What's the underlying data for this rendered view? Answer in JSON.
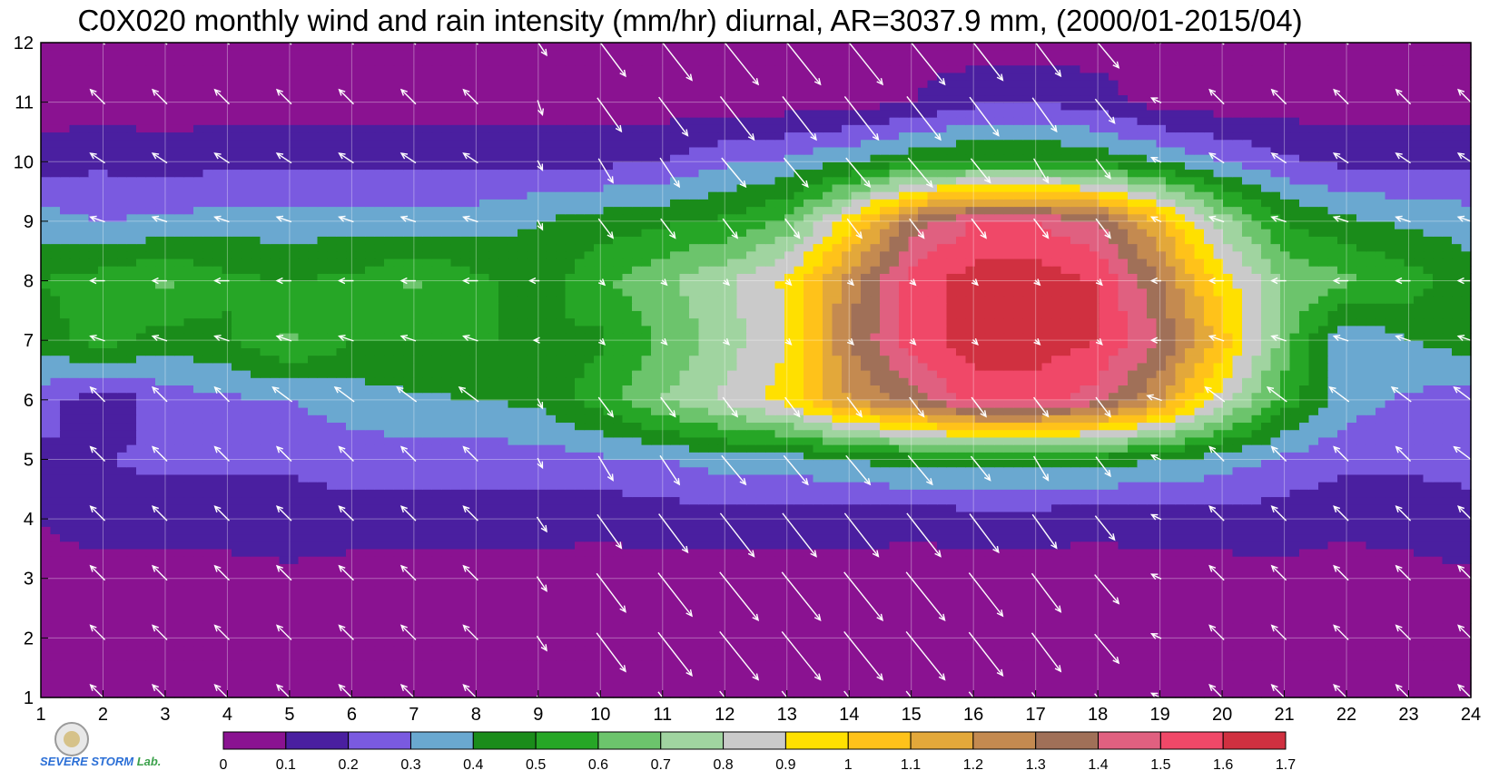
{
  "title": "C0X020 monthly wind and rain intensity (mm/hr) diurnal, AR=3037.9 mm, (2000/01-2015/04)",
  "logo": {
    "name": "Severe Storm Lab.",
    "text_main": "SEVERE STORM",
    "text_lab": "Lab."
  },
  "chart_data": {
    "type": "heatmap",
    "title": "C0X020 monthly wind and rain intensity (mm/hr) diurnal, AR=3037.9 mm, (2000/01-2015/04)",
    "xlabel": "",
    "ylabel": "",
    "x_ticks": [
      "1",
      "2",
      "3",
      "4",
      "5",
      "6",
      "7",
      "8",
      "9",
      "10",
      "11",
      "12",
      "13",
      "14",
      "15",
      "16",
      "17",
      "18",
      "19",
      "20",
      "21",
      "22",
      "23",
      "24"
    ],
    "y_ticks": [
      "1",
      "2",
      "3",
      "4",
      "5",
      "6",
      "7",
      "8",
      "9",
      "10",
      "11",
      "12"
    ],
    "xlim": [
      1,
      24
    ],
    "ylim": [
      1,
      12
    ],
    "grid": true,
    "colorbar": {
      "orientation": "horizontal",
      "ticks": [
        "0",
        "0.1",
        "0.2",
        "0.3",
        "0.4",
        "0.5",
        "0.6",
        "0.7",
        "0.8",
        "0.9",
        "1",
        "1.1",
        "1.2",
        "1.3",
        "1.4",
        "1.5",
        "1.6",
        "1.7"
      ],
      "colors": [
        "#8a1291",
        "#4a1fa0",
        "#7a5ae0",
        "#6aa8d0",
        "#1a8c1a",
        "#26a626",
        "#6cc46c",
        "#a0d4a0",
        "#cacaca",
        "#ffe000",
        "#ffc21a",
        "#e3a83a",
        "#c48a50",
        "#a07058",
        "#e06080",
        "#f04868",
        "#d03040"
      ]
    },
    "intensity_grid": {
      "rows_y": [
        1,
        2,
        3,
        4,
        5,
        6,
        7,
        8,
        9,
        10,
        11,
        12
      ],
      "cols_x": [
        1,
        2,
        3,
        4,
        5,
        6,
        7,
        8,
        9,
        10,
        11,
        12,
        13,
        14,
        15,
        16,
        17,
        18,
        19,
        20,
        21,
        22,
        23,
        24
      ],
      "values": [
        [
          0.05,
          0.05,
          0.05,
          0.05,
          0.05,
          0.05,
          0.05,
          0.05,
          0.05,
          0.05,
          0.05,
          0.05,
          0.05,
          0.05,
          0.05,
          0.05,
          0.05,
          0.05,
          0.05,
          0.05,
          0.05,
          0.05,
          0.05,
          0.05
        ],
        [
          0.05,
          0.1,
          0.05,
          0.05,
          0.05,
          0.05,
          0.05,
          0.05,
          0.05,
          0.1,
          0.05,
          0.05,
          0.05,
          0.05,
          0.05,
          0.05,
          0.05,
          0.05,
          0.05,
          0.05,
          0.05,
          0.05,
          0.05,
          0.05
        ],
        [
          0.06,
          0.06,
          0.06,
          0.06,
          0.08,
          0.06,
          0.06,
          0.06,
          0.06,
          0.06,
          0.06,
          0.06,
          0.06,
          0.06,
          0.06,
          0.06,
          0.06,
          0.06,
          0.06,
          0.06,
          0.07,
          0.06,
          0.06,
          0.08
        ],
        [
          0.1,
          0.15,
          0.15,
          0.15,
          0.15,
          0.15,
          0.15,
          0.15,
          0.15,
          0.12,
          0.15,
          0.15,
          0.15,
          0.15,
          0.12,
          0.15,
          0.15,
          0.12,
          0.15,
          0.15,
          0.15,
          0.12,
          0.15,
          0.18
        ],
        [
          0.18,
          0.2,
          0.22,
          0.22,
          0.22,
          0.25,
          0.25,
          0.25,
          0.25,
          0.28,
          0.3,
          0.35,
          0.35,
          0.4,
          0.45,
          0.45,
          0.45,
          0.45,
          0.4,
          0.35,
          0.28,
          0.22,
          0.22,
          0.22
        ],
        [
          0.25,
          0.12,
          0.25,
          0.28,
          0.3,
          0.35,
          0.38,
          0.4,
          0.42,
          0.55,
          0.7,
          0.82,
          0.95,
          1.2,
          1.35,
          1.55,
          1.55,
          1.45,
          1.2,
          0.85,
          0.55,
          0.35,
          0.28,
          0.25
        ],
        [
          0.45,
          0.55,
          0.45,
          0.48,
          0.62,
          0.5,
          0.5,
          0.5,
          0.5,
          0.48,
          0.62,
          0.75,
          0.9,
          1.3,
          1.55,
          1.65,
          1.65,
          1.6,
          1.4,
          1.05,
          0.65,
          0.3,
          0.4,
          0.45
        ],
        [
          0.5,
          0.55,
          0.62,
          0.52,
          0.5,
          0.52,
          0.62,
          0.52,
          0.45,
          0.58,
          0.68,
          0.78,
          0.92,
          1.25,
          1.55,
          1.65,
          1.65,
          1.6,
          1.3,
          0.95,
          0.7,
          0.62,
          0.55,
          0.45
        ],
        [
          0.35,
          0.3,
          0.32,
          0.35,
          0.35,
          0.35,
          0.35,
          0.35,
          0.4,
          0.45,
          0.48,
          0.52,
          0.62,
          0.95,
          1.35,
          1.5,
          1.5,
          1.4,
          1.1,
          0.75,
          0.5,
          0.42,
          0.38,
          0.35
        ],
        [
          0.15,
          0.18,
          0.15,
          0.18,
          0.18,
          0.18,
          0.18,
          0.18,
          0.18,
          0.18,
          0.2,
          0.28,
          0.32,
          0.4,
          0.48,
          0.52,
          0.52,
          0.48,
          0.4,
          0.3,
          0.22,
          0.18,
          0.18,
          0.18
        ],
        [
          0.05,
          0.05,
          0.05,
          0.05,
          0.05,
          0.05,
          0.05,
          0.05,
          0.05,
          0.05,
          0.05,
          0.05,
          0.05,
          0.05,
          0.1,
          0.18,
          0.2,
          0.15,
          0.05,
          0.05,
          0.05,
          0.05,
          0.05,
          0.05
        ],
        [
          0.05,
          0.05,
          0.05,
          0.05,
          0.05,
          0.05,
          0.05,
          0.05,
          0.05,
          0.05,
          0.05,
          0.05,
          0.05,
          0.05,
          0.05,
          0.05,
          0.05,
          0.05,
          0.05,
          0.05,
          0.05,
          0.05,
          0.05,
          0.05
        ]
      ]
    },
    "wind_vectors": {
      "note_units": "relative",
      "rows_y": [
        1,
        2,
        3,
        4,
        5,
        6,
        7,
        8,
        9,
        10,
        11,
        12
      ],
      "cols_x": [
        2,
        3,
        4,
        5,
        6,
        7,
        8,
        9,
        10,
        11,
        12,
        13,
        14,
        15,
        16,
        17,
        18,
        19,
        20,
        21,
        22,
        23,
        24
      ],
      "u": [
        [
          -0.3,
          -0.3,
          -0.3,
          -0.3,
          -0.3,
          -0.3,
          -0.3,
          0.2,
          0.6,
          0.7,
          0.8,
          0.8,
          0.8,
          0.8,
          0.7,
          0.6,
          0.5,
          -0.2,
          -0.3,
          -0.3,
          -0.3,
          -0.3,
          -0.3
        ],
        [
          -0.3,
          -0.3,
          -0.3,
          -0.3,
          -0.3,
          -0.3,
          -0.3,
          0.2,
          0.6,
          0.7,
          0.8,
          0.8,
          0.8,
          0.8,
          0.7,
          0.6,
          0.5,
          -0.2,
          -0.3,
          -0.3,
          -0.3,
          -0.3,
          -0.3
        ],
        [
          -0.3,
          -0.3,
          -0.3,
          -0.3,
          -0.3,
          -0.3,
          -0.3,
          0.2,
          0.6,
          0.7,
          0.8,
          0.8,
          0.8,
          0.8,
          0.7,
          0.6,
          0.5,
          -0.2,
          -0.3,
          -0.3,
          -0.3,
          -0.3,
          -0.3
        ],
        [
          -0.3,
          -0.3,
          -0.3,
          -0.3,
          -0.3,
          -0.3,
          -0.3,
          0.2,
          0.5,
          0.6,
          0.7,
          0.7,
          0.7,
          0.7,
          0.6,
          0.5,
          0.4,
          -0.2,
          -0.3,
          -0.3,
          -0.3,
          -0.3,
          -0.3
        ],
        [
          -0.3,
          -0.3,
          -0.3,
          -0.3,
          -0.3,
          -0.3,
          -0.3,
          0.1,
          0.3,
          0.4,
          0.5,
          0.5,
          0.5,
          0.5,
          0.4,
          0.3,
          0.3,
          -0.2,
          -0.3,
          -0.3,
          -0.3,
          -0.3,
          -0.4
        ],
        [
          -0.3,
          -0.3,
          -0.3,
          -0.4,
          -0.4,
          -0.4,
          -0.4,
          0.1,
          0.3,
          0.3,
          0.3,
          0.3,
          0.3,
          0.3,
          0.3,
          0.3,
          0.3,
          -0.3,
          -0.4,
          -0.4,
          -0.4,
          -0.4,
          -0.4
        ],
        [
          -0.3,
          -0.3,
          -0.3,
          -0.3,
          -0.3,
          -0.3,
          -0.3,
          -0.1,
          0.1,
          0.1,
          0.1,
          0.1,
          0.1,
          0.1,
          0.1,
          0.1,
          0.1,
          -0.2,
          -0.3,
          -0.3,
          -0.3,
          -0.3,
          -0.3
        ],
        [
          -0.3,
          -0.3,
          -0.3,
          -0.3,
          -0.3,
          -0.3,
          -0.3,
          -0.2,
          0.1,
          0.1,
          0.1,
          0.1,
          0.1,
          0.1,
          0.1,
          0.1,
          0.1,
          -0.2,
          -0.3,
          -0.3,
          -0.3,
          -0.3,
          -0.3
        ],
        [
          -0.3,
          -0.3,
          -0.3,
          -0.3,
          -0.3,
          -0.3,
          -0.3,
          0.1,
          0.3,
          0.3,
          0.3,
          0.3,
          0.3,
          0.3,
          0.3,
          0.3,
          0.3,
          -0.2,
          -0.3,
          -0.3,
          -0.3,
          -0.3,
          -0.3
        ],
        [
          -0.3,
          -0.3,
          -0.3,
          -0.3,
          -0.3,
          -0.3,
          -0.3,
          0.1,
          0.3,
          0.4,
          0.5,
          0.5,
          0.5,
          0.5,
          0.4,
          0.3,
          0.3,
          -0.2,
          -0.3,
          -0.3,
          -0.3,
          -0.3,
          -0.3
        ],
        [
          -0.3,
          -0.3,
          -0.3,
          -0.3,
          -0.3,
          -0.3,
          -0.3,
          0.1,
          0.5,
          0.6,
          0.7,
          0.7,
          0.7,
          0.7,
          0.6,
          0.5,
          0.4,
          -0.2,
          -0.3,
          -0.3,
          -0.3,
          -0.3,
          -0.3
        ],
        [
          -0.3,
          -0.3,
          -0.3,
          -0.3,
          -0.3,
          -0.3,
          -0.3,
          0.2,
          0.6,
          0.7,
          0.8,
          0.8,
          0.8,
          0.8,
          0.7,
          0.6,
          0.5,
          -0.2,
          -0.3,
          -0.3,
          -0.3,
          -0.3,
          -0.3
        ]
      ],
      "v": [
        [
          0.3,
          0.3,
          0.3,
          0.3,
          0.3,
          0.3,
          0.3,
          -0.3,
          -0.8,
          -0.9,
          -1.0,
          -1.0,
          -1.0,
          -1.0,
          -0.9,
          -0.8,
          -0.6,
          0.1,
          0.3,
          0.3,
          0.3,
          0.3,
          0.3
        ],
        [
          0.3,
          0.3,
          0.3,
          0.3,
          0.3,
          0.3,
          0.3,
          -0.3,
          -0.8,
          -0.9,
          -1.0,
          -1.0,
          -1.0,
          -1.0,
          -0.9,
          -0.8,
          -0.6,
          0.1,
          0.3,
          0.3,
          0.3,
          0.3,
          0.3
        ],
        [
          0.3,
          0.3,
          0.3,
          0.3,
          0.3,
          0.3,
          0.3,
          -0.3,
          -0.8,
          -0.9,
          -1.0,
          -1.0,
          -1.0,
          -1.0,
          -0.9,
          -0.8,
          -0.6,
          0.1,
          0.3,
          0.3,
          0.3,
          0.3,
          0.3
        ],
        [
          0.3,
          0.3,
          0.3,
          0.3,
          0.3,
          0.3,
          0.3,
          -0.3,
          -0.7,
          -0.8,
          -0.9,
          -0.9,
          -0.9,
          -0.9,
          -0.8,
          -0.7,
          -0.5,
          0.1,
          0.3,
          0.3,
          0.3,
          0.3,
          0.3
        ],
        [
          0.3,
          0.3,
          0.3,
          0.3,
          0.3,
          0.3,
          0.3,
          -0.2,
          -0.5,
          -0.6,
          -0.6,
          -0.6,
          -0.6,
          -0.6,
          -0.5,
          -0.5,
          -0.4,
          0.1,
          0.3,
          0.3,
          0.3,
          0.3,
          0.3
        ],
        [
          0.3,
          0.3,
          0.3,
          0.3,
          0.3,
          0.3,
          0.3,
          -0.2,
          -0.4,
          -0.4,
          -0.4,
          -0.4,
          -0.4,
          -0.4,
          -0.4,
          -0.4,
          -0.4,
          0.1,
          0.3,
          0.3,
          0.3,
          0.3,
          0.3
        ],
        [
          0.1,
          0.1,
          0.1,
          0.1,
          0.1,
          0.1,
          0.1,
          0.0,
          -0.1,
          -0.1,
          -0.1,
          -0.1,
          -0.1,
          -0.1,
          -0.1,
          -0.1,
          -0.1,
          0.0,
          0.1,
          0.1,
          0.1,
          0.1,
          0.1
        ],
        [
          0.0,
          0.0,
          0.0,
          0.0,
          0.0,
          0.0,
          0.0,
          0.0,
          -0.1,
          -0.1,
          -0.1,
          -0.1,
          -0.1,
          -0.1,
          -0.1,
          -0.1,
          -0.1,
          0.0,
          0.0,
          0.0,
          0.0,
          0.0,
          0.0
        ],
        [
          0.1,
          0.1,
          0.1,
          0.1,
          0.1,
          0.1,
          0.1,
          -0.2,
          -0.4,
          -0.4,
          -0.4,
          -0.4,
          -0.4,
          -0.4,
          -0.4,
          -0.4,
          -0.4,
          0.1,
          0.1,
          0.1,
          0.1,
          0.1,
          0.1
        ],
        [
          0.2,
          0.2,
          0.2,
          0.2,
          0.2,
          0.2,
          0.2,
          -0.2,
          -0.5,
          -0.6,
          -0.6,
          -0.6,
          -0.6,
          -0.6,
          -0.5,
          -0.5,
          -0.4,
          0.1,
          0.2,
          0.2,
          0.2,
          0.2,
          0.2
        ],
        [
          0.3,
          0.3,
          0.3,
          0.3,
          0.3,
          0.3,
          0.3,
          -0.3,
          -0.7,
          -0.8,
          -0.9,
          -0.9,
          -0.9,
          -0.9,
          -0.8,
          -0.7,
          -0.5,
          0.1,
          0.3,
          0.3,
          0.3,
          0.3,
          0.3
        ],
        [
          0.3,
          0.3,
          0.3,
          0.3,
          0.3,
          0.3,
          0.3,
          -0.3,
          -0.8,
          -0.9,
          -1.0,
          -1.0,
          -1.0,
          -1.0,
          -0.9,
          -0.8,
          -0.6,
          0.1,
          0.3,
          0.3,
          0.3,
          0.3,
          0.3
        ]
      ]
    }
  }
}
